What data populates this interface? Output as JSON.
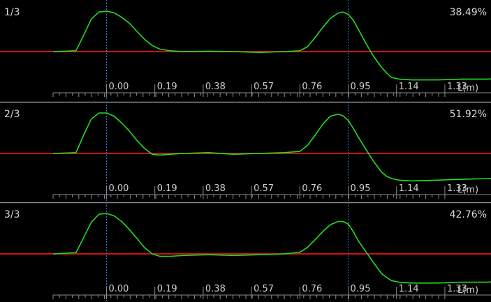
{
  "colors": {
    "background": "#000000",
    "trace": "#22dd22",
    "baseline": "#cc1111",
    "marker": "#3a78c8",
    "text": "#d7d7d7",
    "axis": "#8a8a8a"
  },
  "chart_data": [
    {
      "type": "line",
      "label": "1/3",
      "percent": "38.49%",
      "x_ticks": [
        "0.00",
        "0.19",
        "0.38",
        "0.57",
        "0.76",
        "0.95",
        "1.14",
        "1.33"
      ],
      "x_unit": "L(m)",
      "xlim": [
        -0.21,
        1.72
      ],
      "ylim": [
        -1,
        1
      ],
      "markers_x": [
        0.0,
        0.95
      ],
      "baseline_y": 0.0,
      "x": [
        -0.21,
        -0.12,
        -0.09,
        -0.06,
        -0.03,
        0.0,
        0.03,
        0.06,
        0.09,
        0.12,
        0.15,
        0.18,
        0.21,
        0.25,
        0.3,
        0.4,
        0.5,
        0.6,
        0.7,
        0.76,
        0.79,
        0.82,
        0.85,
        0.88,
        0.91,
        0.93,
        0.95,
        0.97,
        0.99,
        1.02,
        1.05,
        1.08,
        1.1,
        1.12,
        1.15,
        1.2,
        1.3,
        1.4,
        1.5,
        1.6,
        1.72
      ],
      "y": [
        0,
        0.02,
        0.4,
        0.8,
        0.98,
        1.0,
        0.96,
        0.85,
        0.7,
        0.5,
        0.3,
        0.15,
        0.06,
        0.02,
        0,
        0.01,
        0,
        -0.02,
        0,
        0.02,
        0.12,
        0.35,
        0.6,
        0.82,
        0.95,
        0.98,
        0.92,
        0.78,
        0.55,
        0.2,
        -0.12,
        -0.38,
        -0.52,
        -0.64,
        -0.68,
        -0.7,
        -0.7,
        -0.68,
        -0.68,
        -0.64,
        -0.52
      ]
    },
    {
      "type": "line",
      "label": "2/3",
      "percent": "51.92%",
      "x_ticks": [
        "0.00",
        "0.19",
        "0.38",
        "0.57",
        "0.76",
        "0.95",
        "1.14",
        "1.33"
      ],
      "x_unit": "L(m)",
      "xlim": [
        -0.21,
        1.72
      ],
      "ylim": [
        -1,
        1
      ],
      "markers_x": [
        0.0,
        0.95
      ],
      "baseline_y": 0.0,
      "x": [
        -0.21,
        -0.12,
        -0.09,
        -0.06,
        -0.03,
        0.0,
        0.03,
        0.06,
        0.09,
        0.12,
        0.15,
        0.18,
        0.21,
        0.25,
        0.3,
        0.4,
        0.5,
        0.6,
        0.7,
        0.76,
        0.79,
        0.82,
        0.85,
        0.88,
        0.91,
        0.93,
        0.95,
        0.97,
        0.99,
        1.02,
        1.05,
        1.08,
        1.1,
        1.12,
        1.15,
        1.2,
        1.3,
        1.4,
        1.5,
        1.6,
        1.72
      ],
      "y": [
        0,
        0.02,
        0.45,
        0.85,
        1.0,
        1.0,
        0.92,
        0.75,
        0.55,
        0.32,
        0.12,
        -0.02,
        -0.04,
        -0.02,
        0,
        0.02,
        -0.02,
        0.0,
        0.02,
        0.05,
        0.2,
        0.45,
        0.72,
        0.92,
        0.97,
        0.93,
        0.82,
        0.62,
        0.4,
        0.1,
        -0.2,
        -0.45,
        -0.56,
        -0.62,
        -0.66,
        -0.68,
        -0.66,
        -0.64,
        -0.62,
        -0.6,
        -0.44
      ]
    },
    {
      "type": "line",
      "label": "3/3",
      "percent": "42.76%",
      "x_ticks": [
        "0.00",
        "0.19",
        "0.38",
        "0.57",
        "0.76",
        "0.95",
        "1.14",
        "1.33"
      ],
      "x_unit": "L(m)",
      "xlim": [
        -0.21,
        1.72
      ],
      "ylim": [
        -1,
        1
      ],
      "markers_x": [
        0.0,
        0.95
      ],
      "baseline_y": 0.0,
      "x": [
        -0.21,
        -0.12,
        -0.09,
        -0.06,
        -0.03,
        0.0,
        0.03,
        0.06,
        0.09,
        0.12,
        0.15,
        0.18,
        0.21,
        0.25,
        0.3,
        0.4,
        0.5,
        0.6,
        0.7,
        0.76,
        0.79,
        0.82,
        0.85,
        0.88,
        0.91,
        0.93,
        0.95,
        0.97,
        0.99,
        1.02,
        1.05,
        1.08,
        1.1,
        1.12,
        1.15,
        1.2,
        1.3,
        1.4,
        1.5,
        1.6,
        1.72
      ],
      "y": [
        0,
        0.03,
        0.4,
        0.78,
        0.98,
        1.0,
        0.94,
        0.8,
        0.6,
        0.38,
        0.15,
        0.0,
        -0.06,
        -0.06,
        -0.04,
        -0.02,
        -0.04,
        -0.02,
        0.0,
        0.04,
        0.16,
        0.35,
        0.55,
        0.72,
        0.8,
        0.8,
        0.74,
        0.55,
        0.32,
        0.05,
        -0.22,
        -0.48,
        -0.58,
        -0.66,
        -0.7,
        -0.72,
        -0.72,
        -0.7,
        -0.7,
        -0.64,
        -0.5
      ]
    }
  ]
}
